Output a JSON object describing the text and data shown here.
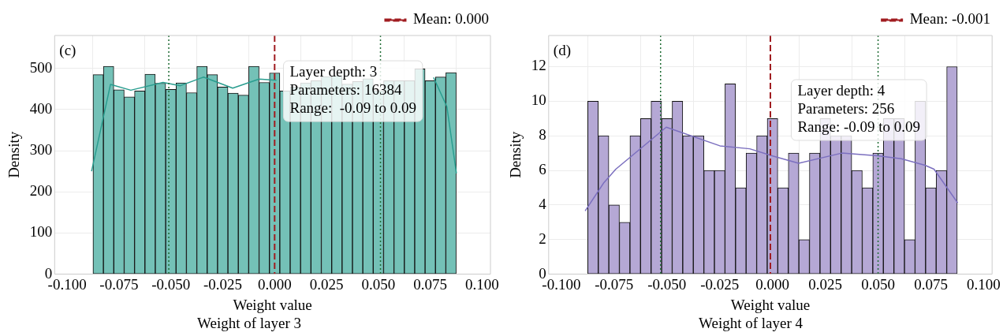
{
  "chart_data": [
    {
      "type": "histogram",
      "title": "Weight of layer 3",
      "xlabel": "Weight value",
      "ylabel": "Density",
      "color": "#74c1b7",
      "bins": [
        -0.0875,
        -0.0825,
        -0.0775,
        -0.0725,
        -0.0675,
        -0.0625,
        -0.0575,
        -0.0525,
        -0.0475,
        -0.0425,
        -0.0375,
        -0.0325,
        -0.0275,
        -0.0225,
        -0.0175,
        -0.0125,
        -0.0075,
        -0.0025,
        0.0025,
        0.0075,
        0.0125,
        0.0175,
        0.0225,
        0.0275,
        0.0325,
        0.0375,
        0.0425,
        0.0475,
        0.0525,
        0.0575,
        0.0625,
        0.0675,
        0.0725,
        0.0775,
        0.0825,
        0.0875
      ],
      "values": [
        485,
        505,
        448,
        431,
        445,
        486,
        464,
        449,
        465,
        441,
        505,
        485,
        455,
        440,
        435,
        505,
        466,
        489,
        445,
        455,
        465,
        470,
        480,
        482,
        462,
        468,
        475,
        446,
        470,
        470,
        470,
        499,
        470,
        479,
        490
      ],
      "series": [
        {
          "type": "line",
          "color": "#2a9d8f",
          "x": [
            -0.0882,
            -0.0791,
            -0.0693,
            -0.0538,
            -0.0454,
            -0.0342,
            -0.0202,
            -0.0075,
            0.0009,
            0.0149,
            0.0359,
            0.057,
            0.0766,
            0.083,
            0.0876
          ],
          "values": [
            250,
            461,
            447,
            466,
            458,
            479,
            452,
            474,
            471,
            null,
            null,
            null,
            478,
            407,
            245
          ]
        }
      ],
      "xlim": [
        -0.106,
        0.104
      ],
      "ylim": [
        0,
        580
      ],
      "xticks": [
        {
          "value": -0.1,
          "label": "-0.100"
        },
        {
          "value": -0.075,
          "label": "-0.075"
        },
        {
          "value": -0.05,
          "label": "-0.050"
        },
        {
          "value": -0.025,
          "label": "-0.025"
        },
        {
          "value": 0,
          "label": "0.000"
        },
        {
          "value": 0.025,
          "label": "0.025"
        },
        {
          "value": 0.05,
          "label": "0.050"
        },
        {
          "value": 0.075,
          "label": "0.075"
        },
        {
          "value": 0.1,
          "label": "0.100"
        }
      ],
      "yticks": [
        0,
        100,
        200,
        300,
        400,
        500
      ],
      "grid": true,
      "legend": "top right",
      "ref_lines": [
        {
          "axis": "x",
          "value": 0.0,
          "label": "Mean: 0.000",
          "color": "#a01c20",
          "line_style": "dashed"
        },
        {
          "axis": "x",
          "value": -0.051,
          "color": "#1e6b33",
          "line_style": "dotted"
        },
        {
          "axis": "x",
          "value": 0.051,
          "color": "#1e6b33",
          "line_style": "dotted"
        }
      ],
      "annotations": [
        "(c)",
        "Layer depth: 3",
        "Parameters: 16384",
        "Range:  -0.09 to 0.09"
      ]
    },
    {
      "type": "histogram",
      "title": "Weight of layer 4",
      "xlabel": "Weight value",
      "ylabel": "Density",
      "color": "#b5a8d5",
      "bins": [
        -0.0875,
        -0.0825,
        -0.0775,
        -0.0725,
        -0.0675,
        -0.0625,
        -0.0575,
        -0.0525,
        -0.0475,
        -0.0425,
        -0.0375,
        -0.0325,
        -0.0275,
        -0.0225,
        -0.0175,
        -0.0125,
        -0.0075,
        -0.0025,
        0.0025,
        0.0075,
        0.0125,
        0.0175,
        0.0225,
        0.0275,
        0.0325,
        0.0375,
        0.0425,
        0.0475,
        0.0525,
        0.0575,
        0.0625,
        0.0675,
        0.0725,
        0.0775,
        0.0825,
        0.0875
      ],
      "values": [
        10,
        8,
        4,
        3,
        8,
        9,
        10,
        9,
        10,
        8,
        8,
        6,
        6,
        11,
        5,
        7,
        8,
        9,
        5,
        7,
        2,
        7,
        9,
        8,
        8,
        6,
        5,
        7,
        9,
        9,
        2,
        10,
        5,
        6,
        12
      ],
      "series": [
        {
          "type": "line",
          "color": "#7b6fbf",
          "x": [
            -0.0887,
            -0.0798,
            -0.0742,
            -0.0503,
            -0.0249,
            -0.0108,
            0.0004,
            0.0124,
            0.0328,
            0.0497,
            0.061,
            0.0722,
            0.0765,
            0.0877
          ],
          "values": [
            3.66,
            5.3,
            6.07,
            8.5,
            7.42,
            7.25,
            6.82,
            6.41,
            7.0,
            6.85,
            6.67,
            6.3,
            6.07,
            4.12
          ]
        }
      ],
      "xlim": [
        -0.106,
        0.104
      ],
      "ylim": [
        0,
        13.8
      ],
      "xticks": [
        {
          "value": -0.1,
          "label": "-0.100"
        },
        {
          "value": -0.075,
          "label": "-0.075"
        },
        {
          "value": -0.05,
          "label": "-0.050"
        },
        {
          "value": -0.025,
          "label": "-0.025"
        },
        {
          "value": 0,
          "label": "0.000"
        },
        {
          "value": 0.025,
          "label": "0.025"
        },
        {
          "value": 0.05,
          "label": "0.050"
        },
        {
          "value": 0.075,
          "label": "0.075"
        },
        {
          "value": 0.1,
          "label": "0.100"
        }
      ],
      "yticks": [
        0,
        2,
        4,
        6,
        8,
        10,
        12
      ],
      "grid": true,
      "legend": "top right",
      "ref_lines": [
        {
          "axis": "x",
          "value": -0.001,
          "label": "Mean: -0.001",
          "color": "#a01c20",
          "line_style": "dashed"
        },
        {
          "axis": "x",
          "value": -0.053,
          "color": "#1e6b33",
          "line_style": "dotted"
        },
        {
          "axis": "x",
          "value": 0.05,
          "color": "#1e6b33",
          "line_style": "dotted"
        }
      ],
      "annotations": [
        "(d)",
        "Layer depth: 4",
        "Parameters: 256",
        "Range: -0.09 to 0.09"
      ]
    }
  ]
}
